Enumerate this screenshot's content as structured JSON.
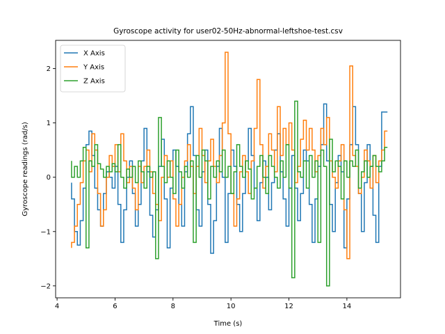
{
  "chart_data": {
    "type": "line",
    "title": "Gyroscope activity for user02-50Hz-abnormal-leftshoe-test.csv",
    "xlabel": "Time (s)",
    "ylabel": "Gyroscope readings (rad/s)",
    "xlim": [
      3.95,
      15.85
    ],
    "ylim": [
      -2.22,
      2.52
    ],
    "xticks": [
      4,
      6,
      8,
      10,
      12,
      14
    ],
    "yticks": [
      -2,
      -1,
      0,
      1,
      2
    ],
    "grid": false,
    "legend_position": "top-left",
    "series": [
      {
        "name": "X Axis",
        "color": "#1f77b4",
        "x": [
          4.5,
          4.6,
          4.7,
          4.8,
          4.9,
          5.0,
          5.1,
          5.2,
          5.3,
          5.4,
          5.5,
          5.6,
          5.7,
          5.8,
          5.9,
          6.0,
          6.1,
          6.2,
          6.3,
          6.4,
          6.5,
          6.6,
          6.7,
          6.8,
          6.9,
          7.0,
          7.1,
          7.2,
          7.3,
          7.4,
          7.5,
          7.6,
          7.7,
          7.8,
          7.9,
          8.0,
          8.1,
          8.2,
          8.3,
          8.4,
          8.5,
          8.6,
          8.7,
          8.8,
          8.9,
          9.0,
          9.1,
          9.2,
          9.3,
          9.4,
          9.5,
          9.6,
          9.7,
          9.8,
          9.9,
          10.0,
          10.1,
          10.2,
          10.3,
          10.4,
          10.5,
          10.6,
          10.7,
          10.8,
          10.9,
          11.0,
          11.1,
          11.2,
          11.3,
          11.4,
          11.5,
          11.6,
          11.7,
          11.8,
          11.9,
          12.0,
          12.1,
          12.2,
          12.3,
          12.4,
          12.5,
          12.6,
          12.7,
          12.8,
          12.9,
          13.0,
          13.1,
          13.2,
          13.3,
          13.4,
          13.5,
          13.6,
          13.7,
          13.8,
          13.9,
          14.0,
          14.1,
          14.2,
          14.3,
          14.4,
          14.5,
          14.6,
          14.7,
          14.8,
          14.9,
          15.0,
          15.1,
          15.2,
          15.3,
          15.4
        ],
        "values": [
          -0.1,
          -0.4,
          -1.0,
          -1.25,
          -0.8,
          -0.2,
          0.6,
          0.85,
          0.4,
          -0.2,
          -0.6,
          -0.9,
          -0.3,
          0.1,
          0.0,
          -0.2,
          0.2,
          -0.5,
          -1.2,
          -0.6,
          0.0,
          0.3,
          -0.3,
          -0.9,
          -0.5,
          0.3,
          0.9,
          0.1,
          -0.7,
          -1.1,
          -0.6,
          0.2,
          0.7,
          -0.4,
          -1.3,
          -0.2,
          0.5,
          0.2,
          -0.5,
          -0.9,
          0.1,
          0.8,
          1.3,
          0.4,
          -0.6,
          -0.9,
          0.1,
          0.5,
          -0.5,
          -1.4,
          -0.8,
          0.2,
          0.9,
          0.0,
          -1.2,
          -0.3,
          0.5,
          0.2,
          -0.5,
          -1.0,
          -0.3,
          0.3,
          0.9,
          0.4,
          -0.2,
          -0.8,
          -0.1,
          0.3,
          0.0,
          -0.6,
          -0.1,
          0.5,
          0.8,
          0.1,
          -0.4,
          -0.9,
          -0.2,
          0.4,
          -0.2,
          -0.8,
          -0.3,
          0.5,
          0.3,
          -0.5,
          -1.2,
          -0.4,
          0.2,
          0.6,
          1.35,
          0.3,
          -0.5,
          -1.0,
          -0.1,
          0.4,
          0.1,
          -1.3,
          -0.4,
          0.6,
          1.3,
          0.6,
          -0.3,
          -1.0,
          -0.1,
          0.6,
          0.2,
          -0.7,
          -1.2,
          0.2,
          1.2,
          1.2
        ]
      },
      {
        "name": "Y Axis",
        "color": "#ff7f0e",
        "x": [
          4.5,
          4.6,
          4.7,
          4.8,
          4.9,
          5.0,
          5.1,
          5.2,
          5.3,
          5.4,
          5.5,
          5.6,
          5.7,
          5.8,
          5.9,
          6.0,
          6.1,
          6.2,
          6.3,
          6.4,
          6.5,
          6.6,
          6.7,
          6.8,
          6.9,
          7.0,
          7.1,
          7.2,
          7.3,
          7.4,
          7.5,
          7.6,
          7.7,
          7.8,
          7.9,
          8.0,
          8.1,
          8.2,
          8.3,
          8.4,
          8.5,
          8.6,
          8.7,
          8.8,
          8.9,
          9.0,
          9.1,
          9.2,
          9.3,
          9.4,
          9.5,
          9.6,
          9.7,
          9.8,
          9.9,
          10.0,
          10.1,
          10.2,
          10.3,
          10.4,
          10.5,
          10.6,
          10.7,
          10.8,
          10.9,
          11.0,
          11.1,
          11.2,
          11.3,
          11.4,
          11.5,
          11.6,
          11.7,
          11.8,
          11.9,
          12.0,
          12.1,
          12.2,
          12.3,
          12.4,
          12.5,
          12.6,
          12.7,
          12.8,
          12.9,
          13.0,
          13.1,
          13.2,
          13.3,
          13.4,
          13.5,
          13.6,
          13.7,
          13.8,
          13.9,
          14.0,
          14.1,
          14.2,
          14.3,
          14.4,
          14.5,
          14.6,
          14.7,
          14.8,
          14.9,
          15.0,
          15.1,
          15.2,
          15.3,
          15.4
        ],
        "values": [
          -1.3,
          -1.2,
          -0.9,
          -0.5,
          -0.1,
          0.3,
          0.5,
          0.1,
          0.8,
          0.5,
          -0.3,
          -0.9,
          -0.6,
          0.0,
          0.4,
          0.2,
          0.6,
          0.1,
          0.8,
          0.3,
          -0.1,
          0.2,
          -0.2,
          -0.6,
          0.2,
          -0.1,
          0.2,
          0.5,
          0.1,
          -0.3,
          -0.5,
          -0.8,
          0.0,
          0.4,
          0.0,
          0.3,
          -0.4,
          -0.9,
          -0.5,
          0.0,
          0.3,
          0.6,
          0.2,
          -0.3,
          0.2,
          0.9,
          0.4,
          -0.1,
          0.3,
          0.7,
          0.2,
          -0.1,
          0.4,
          1.0,
          2.3,
          0.8,
          -0.3,
          -0.9,
          -0.4,
          0.1,
          0.4,
          0.1,
          -0.3,
          0.3,
          0.9,
          1.8,
          0.6,
          -0.2,
          0.2,
          0.8,
          0.5,
          0.1,
          1.3,
          0.4,
          0.9,
          0.6,
          1.0,
          0.5,
          -0.1,
          0.2,
          0.7,
          1.05,
          0.5,
          0.9,
          0.5,
          0.1,
          0.4,
          0.9,
          0.6,
          1.1,
          0.3,
          0.0,
          -0.2,
          0.3,
          0.6,
          -0.6,
          -1.5,
          2.05,
          0.4,
          0.2,
          -0.3,
          0.0,
          0.5,
          0.3,
          -0.2,
          0.4,
          -0.1,
          0.3,
          0.5,
          0.85
        ]
      },
      {
        "name": "Z Axis",
        "color": "#2ca02c",
        "x": [
          4.5,
          4.6,
          4.7,
          4.8,
          4.9,
          5.0,
          5.1,
          5.2,
          5.3,
          5.4,
          5.5,
          5.6,
          5.7,
          5.8,
          5.9,
          6.0,
          6.1,
          6.2,
          6.3,
          6.4,
          6.5,
          6.6,
          6.7,
          6.8,
          6.9,
          7.0,
          7.1,
          7.2,
          7.3,
          7.4,
          7.5,
          7.6,
          7.7,
          7.8,
          7.9,
          8.0,
          8.1,
          8.2,
          8.3,
          8.4,
          8.5,
          8.6,
          8.7,
          8.8,
          8.9,
          9.0,
          9.1,
          9.2,
          9.3,
          9.4,
          9.5,
          9.6,
          9.7,
          9.8,
          9.9,
          10.0,
          10.1,
          10.2,
          10.3,
          10.4,
          10.5,
          10.6,
          10.7,
          10.8,
          10.9,
          11.0,
          11.1,
          11.2,
          11.3,
          11.4,
          11.5,
          11.6,
          11.7,
          11.8,
          11.9,
          12.0,
          12.1,
          12.2,
          12.3,
          12.4,
          12.5,
          12.6,
          12.7,
          12.8,
          12.9,
          13.0,
          13.1,
          13.2,
          13.3,
          13.4,
          13.5,
          13.6,
          13.7,
          13.8,
          13.9,
          14.0,
          14.1,
          14.2,
          14.3,
          14.4,
          14.5,
          14.6,
          14.7,
          14.8,
          14.9,
          15.0,
          15.1,
          15.2,
          15.3,
          15.4
        ],
        "values": [
          0.3,
          0.0,
          0.2,
          0.0,
          0.3,
          0.55,
          -1.3,
          0.3,
          0.2,
          0.6,
          0.25,
          0.15,
          0.0,
          0.2,
          0.1,
          0.25,
          0.1,
          0.6,
          0.0,
          -0.2,
          0.15,
          0.0,
          0.2,
          -0.1,
          0.3,
          0.1,
          -0.2,
          0.2,
          0.0,
          0.1,
          -1.5,
          1.1,
          0.2,
          -0.1,
          0.3,
          0.0,
          -0.3,
          0.5,
          0.1,
          -0.2,
          0.2,
          0.0,
          0.3,
          -1.2,
          0.4,
          0.0,
          0.5,
          0.3,
          -0.4,
          0.2,
          0.0,
          0.3,
          0.1,
          0.5,
          0.0,
          0.2,
          -0.3,
          0.1,
          0.6,
          0.2,
          0.0,
          0.3,
          0.15,
          -0.4,
          -0.2,
          0.2,
          0.4,
          0.0,
          -0.3,
          0.4,
          0.2,
          0.0,
          -0.2,
          0.3,
          0.0,
          0.6,
          -0.2,
          -1.85,
          1.4,
          0.1,
          0.0,
          0.3,
          -0.2,
          0.4,
          0.0,
          0.3,
          -1.2,
          0.5,
          0.2,
          -2.0,
          0.7,
          0.1,
          0.3,
          0.2,
          -0.4,
          0.3,
          0.0,
          0.3,
          0.2,
          0.5,
          -0.2,
          0.1,
          0.3,
          0.0,
          0.2,
          0.4,
          0.2,
          0.1,
          0.3,
          0.55
        ]
      }
    ]
  }
}
